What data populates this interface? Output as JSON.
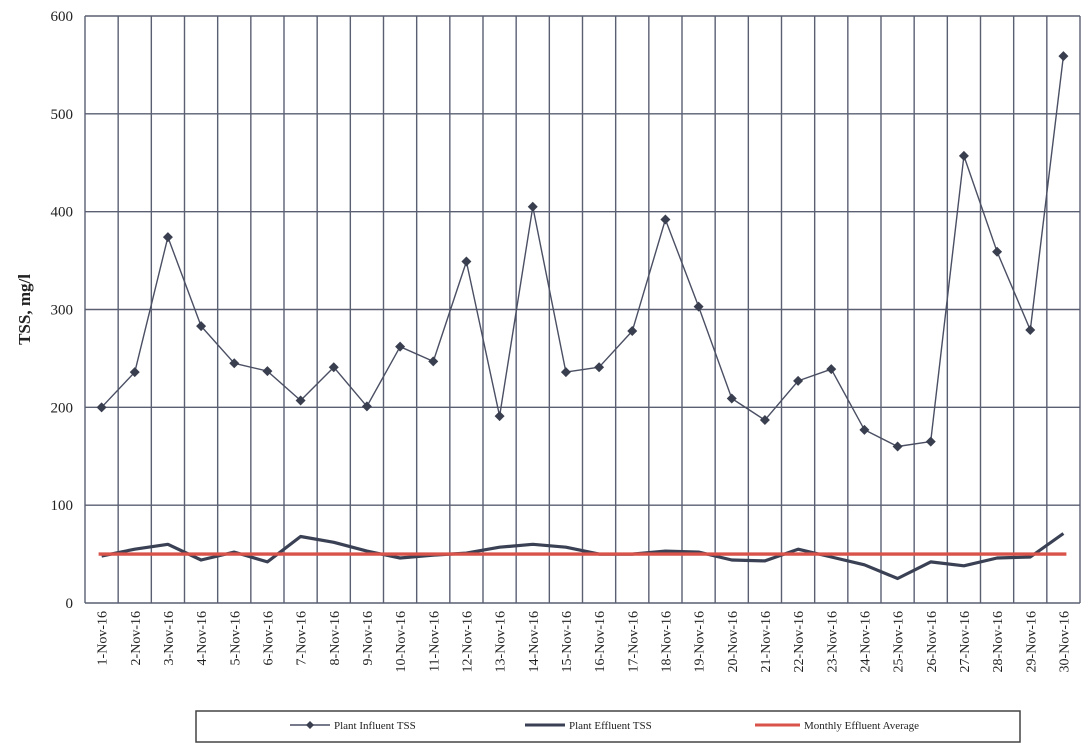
{
  "chart_data": {
    "type": "line",
    "title": "",
    "xlabel": "",
    "ylabel": "TSS, mg/l",
    "ylim": [
      0,
      600
    ],
    "yticks": [
      0,
      100,
      200,
      300,
      400,
      500,
      600
    ],
    "grid": true,
    "legend_position": "bottom",
    "categories": [
      "1-Nov-16",
      "2-Nov-16",
      "3-Nov-16",
      "4-Nov-16",
      "5-Nov-16",
      "6-Nov-16",
      "7-Nov-16",
      "8-Nov-16",
      "9-Nov-16",
      "10-Nov-16",
      "11-Nov-16",
      "12-Nov-16",
      "13-Nov-16",
      "14-Nov-16",
      "15-Nov-16",
      "16-Nov-16",
      "17-Nov-16",
      "18-Nov-16",
      "19-Nov-16",
      "20-Nov-16",
      "21-Nov-16",
      "22-Nov-16",
      "23-Nov-16",
      "24-Nov-16",
      "25-Nov-16",
      "26-Nov-16",
      "27-Nov-16",
      "28-Nov-16",
      "29-Nov-16",
      "30-Nov-16"
    ],
    "series": [
      {
        "name": "Plant Influent TSS",
        "color": "#4a4f63",
        "marker": "diamond",
        "values": [
          200,
          236,
          374,
          283,
          245,
          237,
          207,
          241,
          201,
          262,
          247,
          349,
          191,
          405,
          236,
          241,
          278,
          392,
          303,
          209,
          187,
          227,
          239,
          177,
          160,
          165,
          457,
          359,
          279,
          559
        ]
      },
      {
        "name": "Plant Effluent TSS",
        "color": "#3b4154",
        "marker": "none",
        "values": [
          48,
          55,
          60,
          44,
          52,
          42,
          68,
          62,
          53,
          46,
          49,
          51,
          57,
          60,
          57,
          50,
          50,
          53,
          52,
          44,
          43,
          55,
          47,
          39,
          25,
          42,
          38,
          46,
          47,
          71
        ]
      },
      {
        "name": "Monthly Effluent Average",
        "color": "#d9534a",
        "marker": "none",
        "values": [
          50,
          50,
          50,
          50,
          50,
          50,
          50,
          50,
          50,
          50,
          50,
          50,
          50,
          50,
          50,
          50,
          50,
          50,
          50,
          50,
          50,
          50,
          50,
          50,
          50,
          50,
          50,
          50,
          50,
          50
        ]
      }
    ]
  }
}
